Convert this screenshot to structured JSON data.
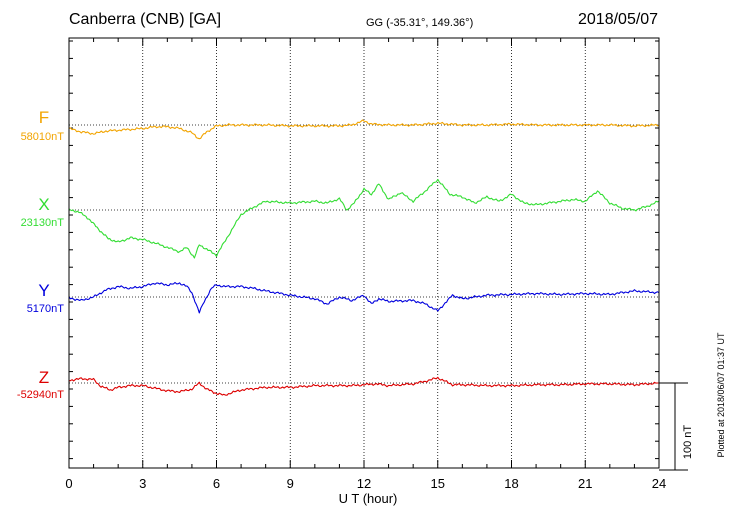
{
  "header": {
    "station": "Canberra (CNB)  [GA]",
    "coords": "GG (-35.31°, 149.36°)",
    "date": "2018/05/07"
  },
  "footer": {
    "scale_label": "100 nT",
    "plotted_stamp": "Plotted at 2018/06/07 01:37 UT"
  },
  "chart_data": {
    "type": "line",
    "title": "Canberra (CNB)  [GA]",
    "xlabel": "U T (hour)",
    "x_ticks": [
      "0",
      "3",
      "6",
      "9",
      "12",
      "15",
      "18",
      "21",
      "24"
    ],
    "xlim": [
      0,
      24
    ],
    "grid": true,
    "scale_bar_nT": 100,
    "series": [
      {
        "name": "F",
        "baseline_label": "58010nT",
        "baseline": 58010,
        "color": "#f2a400",
        "x": [
          0,
          0.5,
          1,
          1.5,
          2,
          2.5,
          3,
          3.5,
          4,
          4.5,
          5,
          5.3,
          5.6,
          6,
          6.5,
          7,
          8,
          9,
          10,
          11,
          11.5,
          12,
          12.3,
          13,
          14,
          15,
          16,
          17,
          18,
          19,
          20,
          21,
          22,
          23,
          24
        ],
        "y": [
          58006,
          58002,
          58000,
          58003,
          58004,
          58005,
          58006,
          58008,
          58008,
          58006,
          58001,
          57994,
          58002,
          58009,
          58010,
          58010,
          58010,
          58009,
          58009,
          58009,
          58010,
          58015,
          58011,
          58010,
          58010,
          58012,
          58010,
          58010,
          58011,
          58010,
          58010,
          58010,
          58010,
          58009,
          58010
        ]
      },
      {
        "name": "X",
        "baseline_label": "23130nT",
        "baseline": 23130,
        "color": "#33dd33",
        "x": [
          0,
          0.4,
          0.8,
          1.2,
          1.6,
          2,
          2.5,
          3,
          3.5,
          4,
          4.5,
          4.8,
          5.1,
          5.3,
          5.6,
          6,
          6.3,
          7,
          7.5,
          8,
          9,
          10,
          10.5,
          11,
          11.3,
          11.6,
          12,
          12.3,
          12.6,
          13,
          13.5,
          14,
          14.5,
          15,
          15.5,
          16,
          16.5,
          17,
          17.5,
          18,
          18.5,
          19,
          19.5,
          20,
          20.5,
          21,
          21.5,
          22,
          22.5,
          23,
          23.5,
          24
        ],
        "y": [
          23130,
          23128,
          23120,
          23108,
          23097,
          23093,
          23098,
          23096,
          23092,
          23087,
          23082,
          23087,
          23075,
          23090,
          23085,
          23078,
          23092,
          23125,
          23133,
          23140,
          23138,
          23140,
          23138,
          23143,
          23130,
          23138,
          23154,
          23148,
          23160,
          23142,
          23150,
          23140,
          23152,
          23165,
          23148,
          23145,
          23138,
          23145,
          23140,
          23148,
          23138,
          23136,
          23138,
          23140,
          23142,
          23140,
          23152,
          23138,
          23132,
          23130,
          23134,
          23140
        ]
      },
      {
        "name": "Y",
        "baseline_label": "5170nT",
        "baseline": 5170,
        "color": "#0000dd",
        "x": [
          0,
          0.5,
          1,
          1.5,
          2,
          2.5,
          3,
          3.5,
          4,
          4.5,
          4.8,
          5,
          5.3,
          5.5,
          5.8,
          6,
          6.3,
          7,
          7.5,
          8,
          9,
          10,
          10.5,
          11,
          11.5,
          12,
          12.3,
          12.6,
          13,
          14,
          14.5,
          15,
          15.3,
          15.6,
          16,
          16.5,
          17,
          18,
          19,
          20,
          21,
          22,
          23,
          24
        ],
        "y": [
          5169,
          5166,
          5170,
          5178,
          5182,
          5180,
          5182,
          5186,
          5184,
          5186,
          5182,
          5175,
          5152,
          5165,
          5180,
          5184,
          5182,
          5182,
          5180,
          5177,
          5172,
          5168,
          5162,
          5170,
          5166,
          5172,
          5162,
          5168,
          5165,
          5166,
          5162,
          5154,
          5163,
          5172,
          5168,
          5170,
          5172,
          5173,
          5174,
          5173,
          5174,
          5173,
          5177,
          5175
        ]
      },
      {
        "name": "Z",
        "baseline_label": "-52940nT",
        "baseline": -52940,
        "color": "#dd0000",
        "x": [
          0,
          0.5,
          1,
          1.3,
          1.7,
          2,
          2.5,
          3,
          3.5,
          4,
          4.5,
          5,
          5.3,
          5.6,
          6,
          6.3,
          7,
          8,
          9,
          10,
          11,
          11.5,
          12,
          12.5,
          13,
          14,
          14.5,
          15,
          15.3,
          15.6,
          16,
          17,
          18,
          19,
          20,
          21,
          22,
          23,
          24
        ],
        "y": [
          -52937,
          -52935,
          -52936,
          -52944,
          -52948,
          -52945,
          -52943,
          -52943,
          -52946,
          -52949,
          -52950,
          -52947,
          -52940,
          -52947,
          -52952,
          -52954,
          -52948,
          -52945,
          -52945,
          -52943,
          -52943,
          -52943,
          -52942,
          -52941,
          -52943,
          -52941,
          -52938,
          -52934,
          -52938,
          -52942,
          -52942,
          -52943,
          -52943,
          -52942,
          -52942,
          -52941,
          -52941,
          -52942,
          -52940
        ]
      }
    ]
  }
}
